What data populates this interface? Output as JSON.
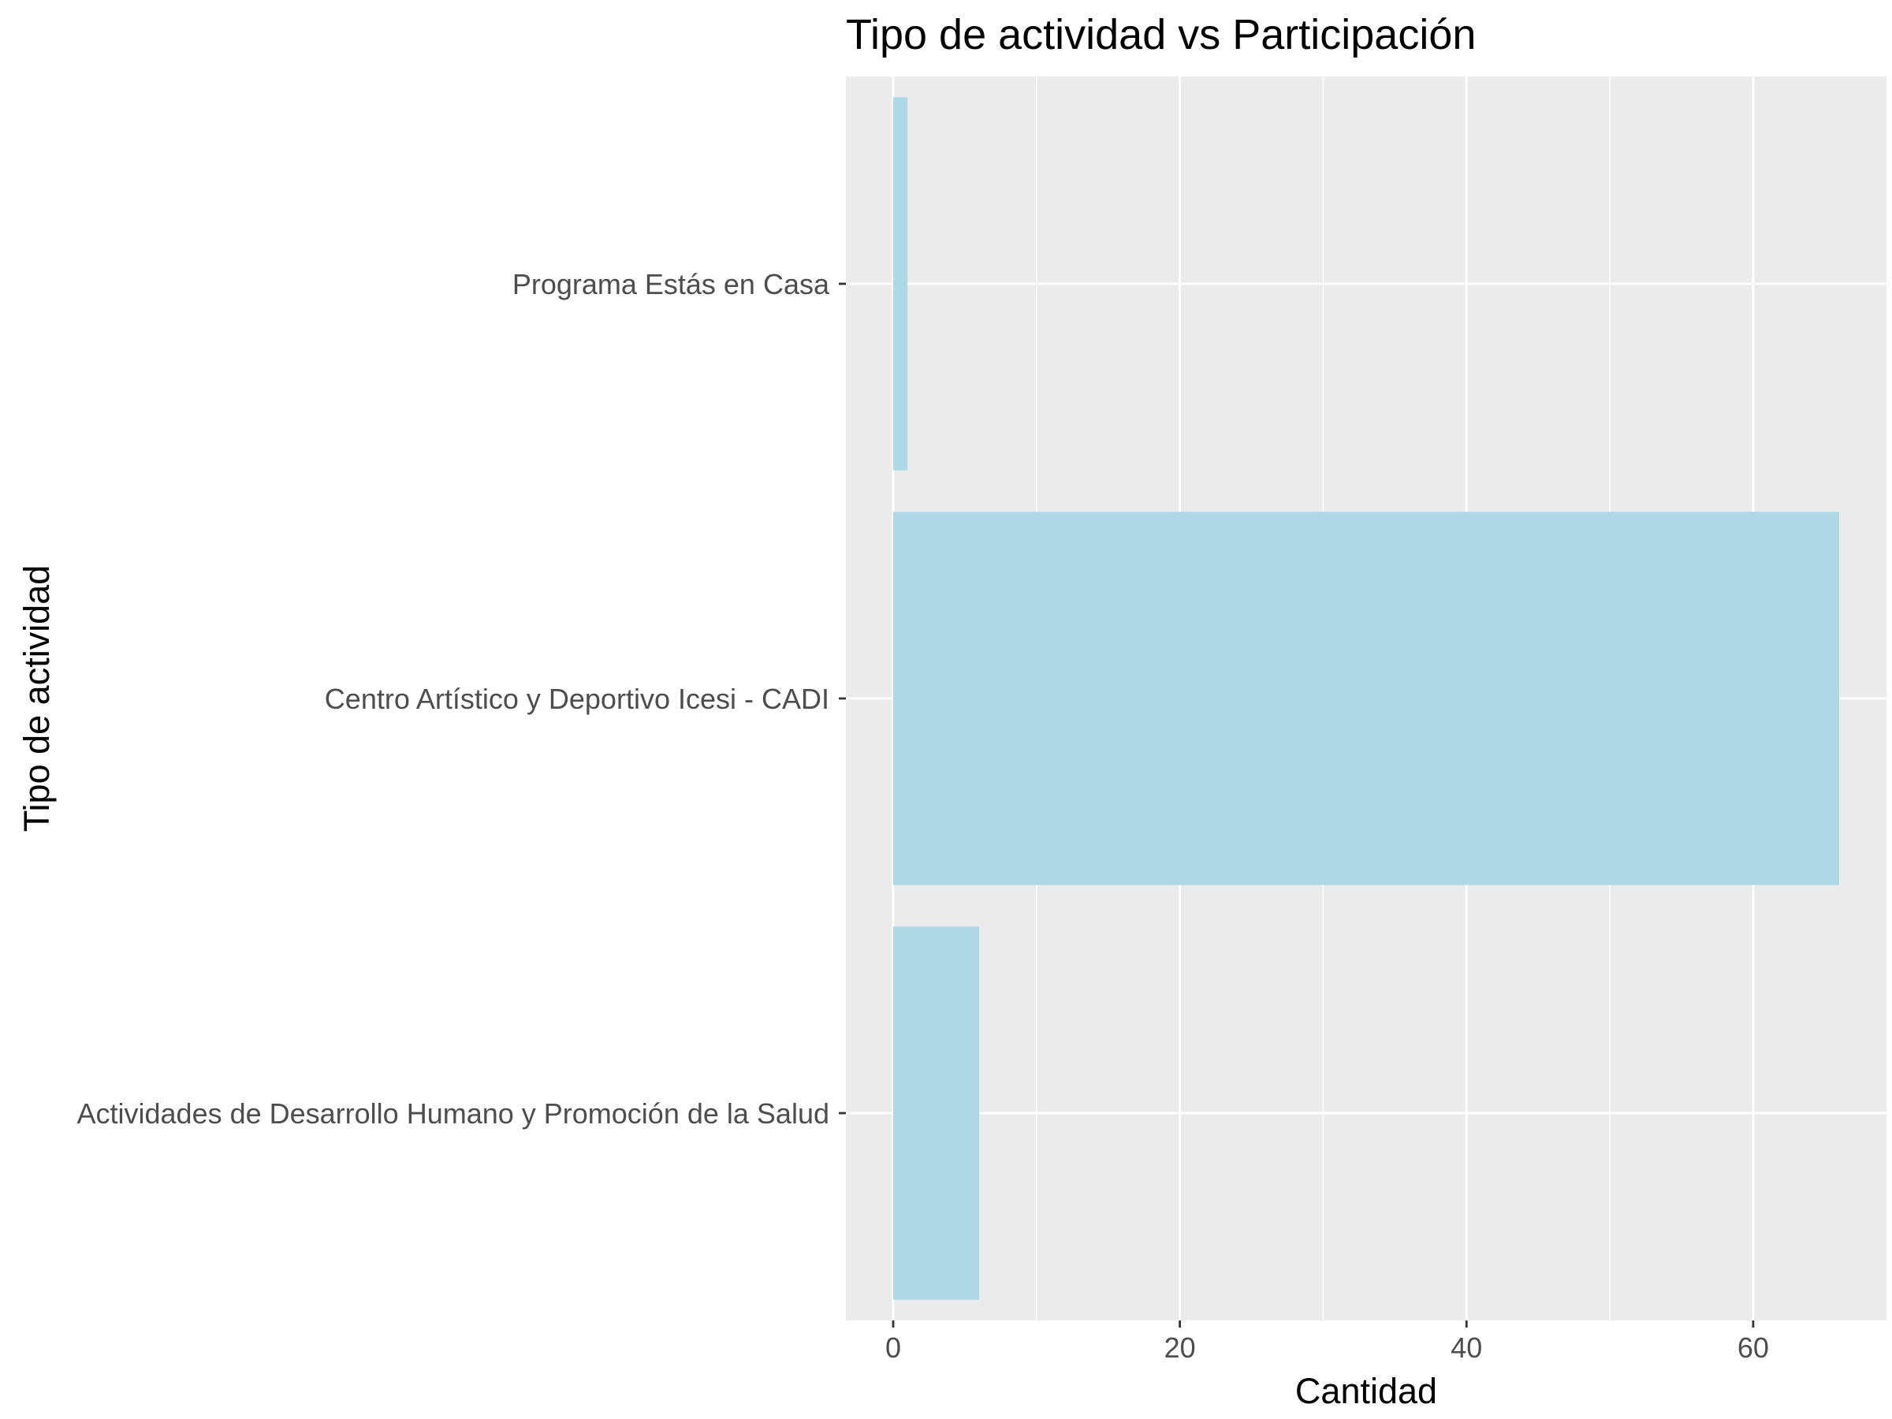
{
  "chart_data": {
    "type": "bar",
    "orientation": "horizontal",
    "title": "Tipo de actividad vs Participación",
    "xlabel": "Cantidad",
    "ylabel": "Tipo de actividad",
    "categories": [
      "Actividades de Desarrollo Humano y Promoción de la Salud",
      "Centro Artístico y Deportivo Icesi - CADI",
      "Programa Estás en Casa"
    ],
    "values": [
      6,
      66,
      1
    ],
    "xlim": [
      -3.3,
      69.3
    ],
    "xticks": [
      0,
      20,
      40,
      60
    ],
    "xtick_labels": [
      "0",
      "20",
      "40",
      "60"
    ],
    "grid": true,
    "legend": "none",
    "colors": {
      "bar": "#add8e6",
      "panel": "#ebebeb",
      "grid": "#ffffff",
      "tick_text": "#4d4d4d",
      "tick_mark": "#333333"
    }
  }
}
